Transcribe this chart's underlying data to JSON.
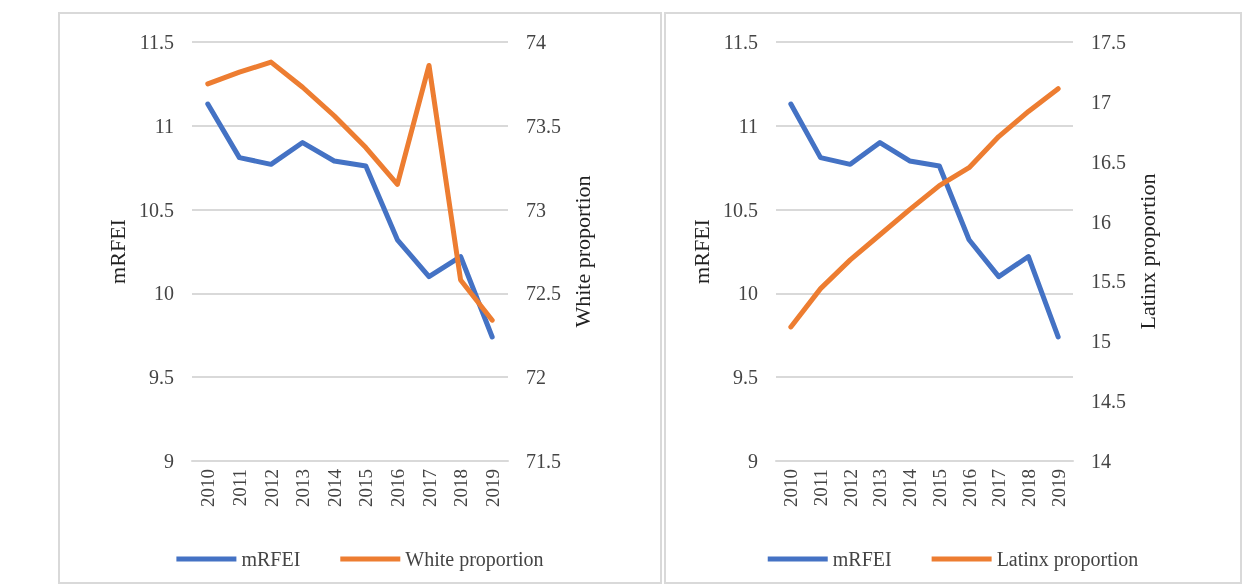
{
  "chart_data": [
    {
      "type": "line",
      "categories": [
        "2010",
        "2011",
        "2012",
        "2013",
        "2014",
        "2015",
        "2016",
        "2017",
        "2018",
        "2019"
      ],
      "series": [
        {
          "name": "mRFEI",
          "color": "#4472c4",
          "values": [
            11.13,
            10.81,
            10.77,
            10.9,
            10.79,
            10.76,
            10.32,
            10.1,
            10.22,
            9.74
          ]
        },
        {
          "name": "White proportion",
          "color": "#ed7d31",
          "axis": "y2",
          "values": [
            73.75,
            73.82,
            73.88,
            73.73,
            73.56,
            73.37,
            73.15,
            73.86,
            72.58,
            72.34
          ]
        }
      ],
      "ylabel": "mRFEI",
      "y2label": "White proportion",
      "ylim": [
        9,
        11.5
      ],
      "yticks": [
        9,
        9.5,
        10,
        10.5,
        11,
        11.5
      ],
      "y2lim": [
        71.5,
        74
      ],
      "y2ticks": [
        71.5,
        72,
        72.5,
        73,
        73.5,
        74
      ],
      "grid": "y",
      "legend": "bottom"
    },
    {
      "type": "line",
      "categories": [
        "2010",
        "2011",
        "2012",
        "2013",
        "2014",
        "2015",
        "2016",
        "2017",
        "2018",
        "2019"
      ],
      "series": [
        {
          "name": "mRFEI",
          "color": "#4472c4",
          "values": [
            11.13,
            10.81,
            10.77,
            10.9,
            10.79,
            10.76,
            10.32,
            10.1,
            10.22,
            9.74
          ]
        },
        {
          "name": "Latinx proportion",
          "color": "#ed7d31",
          "axis": "y2",
          "values": [
            15.12,
            15.44,
            15.68,
            15.89,
            16.1,
            16.3,
            16.45,
            16.71,
            16.92,
            17.11
          ]
        }
      ],
      "ylabel": "mRFEI",
      "y2label": "Latinx proportion",
      "ylim": [
        9,
        11.5
      ],
      "yticks": [
        9,
        9.5,
        10,
        10.5,
        11,
        11.5
      ],
      "y2lim": [
        14,
        17.5
      ],
      "y2ticks": [
        14,
        14.5,
        15,
        15.5,
        16,
        16.5,
        17,
        17.5
      ],
      "grid": "y",
      "legend": "bottom"
    }
  ]
}
